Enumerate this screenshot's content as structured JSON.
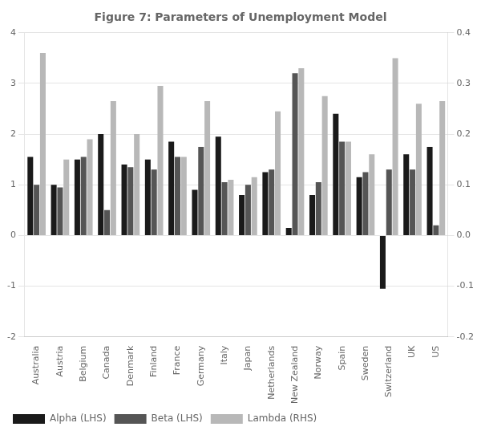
{
  "chart_data": {
    "type": "bar",
    "title": "Figure 7: Parameters of Unemployment Model",
    "categories": [
      "Australia",
      "Austria",
      "Belgium",
      "Canada",
      "Denmark",
      "Finland",
      "France",
      "Germany",
      "Italy",
      "Japan",
      "Netherlands",
      "New Zealand",
      "Norway",
      "Spain",
      "Sweden",
      "Switzerland",
      "UK",
      "US"
    ],
    "series": [
      {
        "name": "Alpha (LHS)",
        "color": "#1a1a1a",
        "values": [
          1.55,
          1.0,
          1.5,
          2.0,
          1.4,
          1.5,
          1.85,
          0.9,
          1.95,
          0.8,
          1.25,
          0.15,
          0.8,
          2.4,
          1.15,
          -1.05,
          1.6,
          1.75
        ]
      },
      {
        "name": "Beta (LHS)",
        "color": "#555555",
        "values": [
          1.0,
          0.95,
          1.55,
          0.5,
          1.35,
          1.3,
          1.55,
          1.75,
          1.05,
          1.0,
          1.3,
          3.2,
          1.05,
          1.85,
          1.25,
          1.3,
          1.3,
          0.2
        ]
      },
      {
        "name": "Lambda (RHS)",
        "color": "#b8b8b8",
        "axis": "y2",
        "values": [
          0.36,
          0.15,
          0.19,
          0.265,
          0.2,
          0.295,
          0.155,
          0.265,
          0.11,
          0.115,
          0.245,
          0.33,
          0.275,
          0.185,
          0.16,
          0.35,
          0.26,
          0.265
        ]
      }
    ],
    "ylim": [
      -2,
      4
    ],
    "yticks": [
      -2,
      -1,
      0,
      1,
      2,
      3,
      4
    ],
    "y2lim": [
      -0.2,
      0.4
    ],
    "y2ticks": [
      -0.2,
      -0.1,
      {
        "value": 0,
        "label": "0.0"
      },
      0.1,
      0.2,
      0.3,
      0.4
    ],
    "grid": true,
    "legend": "lower left"
  }
}
